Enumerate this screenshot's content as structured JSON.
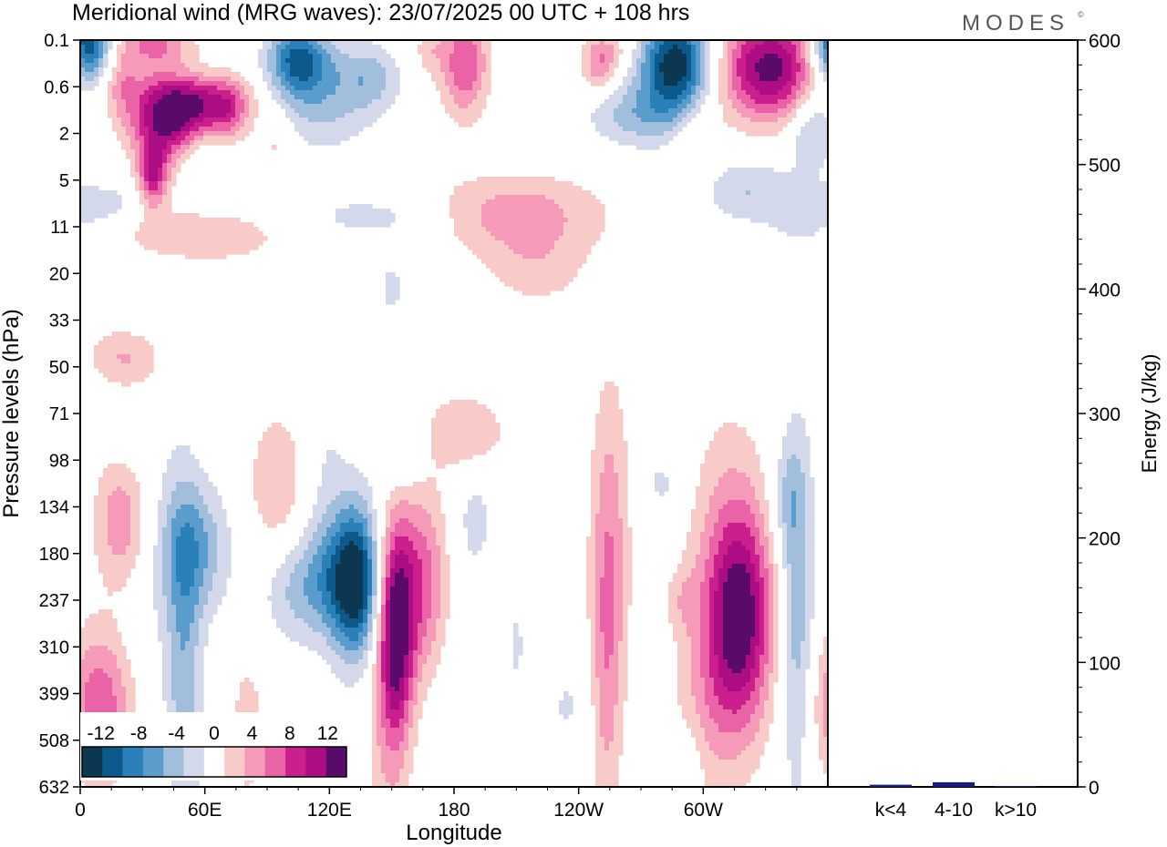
{
  "header": {
    "title": "Meridional wind (MRG waves):  23/07/2025  00 UTC  + 108 hrs",
    "brand": "MODES",
    "brand_mark": "©"
  },
  "colors": {
    "neg": [
      "#0b3850",
      "#0c5a8c",
      "#2a80b8",
      "#5a9ccb",
      "#a2bedd",
      "#d3d9ea"
    ],
    "neutral": "#ffffff",
    "pos": [
      "#f8cbc8",
      "#f59ab9",
      "#ea63a6",
      "#cc1f8e",
      "#ad0d83",
      "#5a0a6a"
    ],
    "bar": "#1a1a80"
  },
  "chart_data": [
    {
      "type": "heatmap",
      "title": "Meridional wind (MRG waves):  23/07/2025  00 UTC  + 108 hrs",
      "xlabel": "Longitude",
      "ylabel": "Pressure levels (hPa)",
      "x_ticks": [
        "0",
        "60E",
        "120E",
        "180",
        "120W",
        "60W"
      ],
      "x_tick_values": [
        0,
        60,
        120,
        180,
        240,
        300
      ],
      "xlim": [
        0,
        360
      ],
      "y_levels": [
        "0.1",
        "0.6",
        "2",
        "5",
        "11",
        "20",
        "33",
        "50",
        "71",
        "98",
        "134",
        "180",
        "237",
        "310",
        "399",
        "508",
        "632"
      ],
      "colorbar": {
        "labels": [
          "-12",
          "-8",
          "-4",
          "0",
          "4",
          "8",
          "12"
        ],
        "levels": [
          -14,
          -12,
          -10,
          -8,
          -6,
          -4,
          -2,
          2,
          4,
          6,
          8,
          10,
          12,
          14
        ]
      },
      "features": [
        {
          "lon": 3,
          "lev": 0.1,
          "rx": 8,
          "ry": 0.6,
          "amp": -13
        },
        {
          "lon": 35,
          "lev": 0.0,
          "rx": 12,
          "ry": 0.4,
          "amp": 6
        },
        {
          "lon": 20,
          "lev": 0.9,
          "rx": 6,
          "ry": 0.5,
          "amp": 4
        },
        {
          "lon": 42,
          "lev": 1.6,
          "rx": 13,
          "ry": 0.7,
          "amp": 13
        },
        {
          "lon": 65,
          "lev": 1.3,
          "rx": 14,
          "ry": 0.5,
          "amp": 8
        },
        {
          "lon": 35,
          "lev": 2.9,
          "rx": 5,
          "ry": 0.5,
          "amp": 9
        },
        {
          "lon": 58,
          "lev": 2.5,
          "rx": 8,
          "ry": 0.5,
          "amp": -3
        },
        {
          "lon": 55,
          "lev": 0.7,
          "rx": 14,
          "ry": 0.3,
          "amp": -2.5
        },
        {
          "lon": 105,
          "lev": 0.4,
          "rx": 10,
          "ry": 0.5,
          "amp": -9
        },
        {
          "lon": 115,
          "lev": 1.2,
          "rx": 18,
          "ry": 0.8,
          "amp": -5
        },
        {
          "lon": 140,
          "lev": 0.8,
          "rx": 10,
          "ry": 0.5,
          "amp": -4
        },
        {
          "lon": 95,
          "lev": 2.2,
          "rx": 6,
          "ry": 0.5,
          "amp": 3
        },
        {
          "lon": 72,
          "lev": 1.6,
          "rx": 6,
          "ry": 0.4,
          "amp": 3
        },
        {
          "lon": 185,
          "lev": 0.5,
          "rx": 8,
          "ry": 0.8,
          "amp": 8
        },
        {
          "lon": 168,
          "lev": 0.2,
          "rx": 5,
          "ry": 0.4,
          "amp": 3
        },
        {
          "lon": 250,
          "lev": 0.6,
          "rx": 6,
          "ry": 0.4,
          "amp": 5
        },
        {
          "lon": 255,
          "lev": 0.2,
          "rx": 8,
          "ry": 0.3,
          "amp": 3
        },
        {
          "lon": 287,
          "lev": 0.5,
          "rx": 12,
          "ry": 0.7,
          "amp": -14
        },
        {
          "lon": 270,
          "lev": 1.6,
          "rx": 18,
          "ry": 0.5,
          "amp": -5
        },
        {
          "lon": 332,
          "lev": 0.6,
          "rx": 17,
          "ry": 0.8,
          "amp": 13
        },
        {
          "lon": 298,
          "lev": 2.2,
          "rx": 8,
          "ry": 0.7,
          "amp": 3
        },
        {
          "lon": 352,
          "lev": 1.9,
          "rx": 8,
          "ry": 0.6,
          "amp": -5
        },
        {
          "lon": 320,
          "lev": 3.2,
          "rx": 18,
          "ry": 0.5,
          "amp": -4
        },
        {
          "lon": 350,
          "lev": 4.0,
          "rx": 15,
          "ry": 0.5,
          "amp": -2.5
        },
        {
          "lon": 210,
          "lev": 3.7,
          "rx": 30,
          "ry": 0.6,
          "amp": 5
        },
        {
          "lon": 220,
          "lev": 4.9,
          "rx": 18,
          "ry": 0.6,
          "amp": 3
        },
        {
          "lon": 55,
          "lev": 4.2,
          "rx": 35,
          "ry": 0.45,
          "amp": 3.5
        },
        {
          "lon": 10,
          "lev": 3.5,
          "rx": 14,
          "ry": 0.3,
          "amp": -3
        },
        {
          "lon": 140,
          "lev": 3.8,
          "rx": 25,
          "ry": 0.35,
          "amp": -3
        },
        {
          "lon": 150,
          "lev": 5.3,
          "rx": 5,
          "ry": 0.6,
          "amp": -2.5
        },
        {
          "lon": 20,
          "lev": 6.7,
          "rx": 14,
          "ry": 0.5,
          "amp": 3
        },
        {
          "lon": 20,
          "lev": 10.3,
          "rx": 10,
          "ry": 1.1,
          "amp": 7
        },
        {
          "lon": 10,
          "lev": 14.2,
          "rx": 12,
          "ry": 1.2,
          "amp": 8
        },
        {
          "lon": 55,
          "lev": 10.9,
          "rx": 12,
          "ry": 1.0,
          "amp": -6
        },
        {
          "lon": 50,
          "lev": 13.5,
          "rx": 6,
          "ry": 2.6,
          "amp": -5
        },
        {
          "lon": 28,
          "lev": 10.5,
          "rx": 16,
          "ry": 3.5,
          "amp": -2
        },
        {
          "lon": 95,
          "lev": 9.5,
          "rx": 10,
          "ry": 1.1,
          "amp": 4
        },
        {
          "lon": 80,
          "lev": 14.8,
          "rx": 6,
          "ry": 1.0,
          "amp": 4
        },
        {
          "lon": 100,
          "lev": 11.8,
          "rx": 10,
          "ry": 0.8,
          "amp": -3
        },
        {
          "lon": 120,
          "lev": 11.6,
          "rx": 12,
          "ry": 0.9,
          "amp": -6
        },
        {
          "lon": 133,
          "lev": 11.6,
          "rx": 8,
          "ry": 1.2,
          "amp": -12
        },
        {
          "lon": 118,
          "lev": 9.0,
          "rx": 8,
          "ry": 2.0,
          "amp": -2
        },
        {
          "lon": 152,
          "lev": 12.6,
          "rx": 6,
          "ry": 1.6,
          "amp": 13
        },
        {
          "lon": 165,
          "lev": 11.6,
          "rx": 8,
          "ry": 1.4,
          "amp": 7
        },
        {
          "lon": 148,
          "lev": 15.0,
          "rx": 8,
          "ry": 2.5,
          "amp": 3
        },
        {
          "lon": 155,
          "lev": 8.7,
          "rx": 8,
          "ry": 0.6,
          "amp": -3
        },
        {
          "lon": 185,
          "lev": 8.4,
          "rx": 14,
          "ry": 0.6,
          "amp": 4
        },
        {
          "lon": 190,
          "lev": 10.3,
          "rx": 6,
          "ry": 0.8,
          "amp": -3
        },
        {
          "lon": 210,
          "lev": 12.8,
          "rx": 4,
          "ry": 0.8,
          "amp": -2
        },
        {
          "lon": 255,
          "lev": 11.0,
          "rx": 7,
          "ry": 2.7,
          "amp": 5
        },
        {
          "lon": 253,
          "lev": 14.0,
          "rx": 5,
          "ry": 2.5,
          "amp": 3
        },
        {
          "lon": 280,
          "lev": 9.5,
          "rx": 7,
          "ry": 0.5,
          "amp": -2.5
        },
        {
          "lon": 290,
          "lev": 12.0,
          "rx": 6,
          "ry": 0.5,
          "amp": 2.5
        },
        {
          "lon": 318,
          "lev": 12.4,
          "rx": 11,
          "ry": 1.6,
          "amp": 11
        },
        {
          "lon": 312,
          "lev": 11.5,
          "rx": 14,
          "ry": 2.5,
          "amp": 4
        },
        {
          "lon": 300,
          "lev": 14.5,
          "rx": 12,
          "ry": 1.5,
          "amp": 2.5
        },
        {
          "lon": 345,
          "lev": 12.2,
          "rx": 6,
          "ry": 2.8,
          "amp": -6
        },
        {
          "lon": 340,
          "lev": 9.8,
          "rx": 6,
          "ry": 0.8,
          "amp": -3
        },
        {
          "lon": 200,
          "lev": 15.2,
          "rx": 16,
          "ry": 1.2,
          "amp": -2
        },
        {
          "lon": 235,
          "lev": 14.2,
          "rx": 8,
          "ry": 0.9,
          "amp": -2
        },
        {
          "lon": 25,
          "lev": 7.0,
          "rx": 12,
          "ry": 0.5,
          "amp": 2.5
        },
        {
          "lon": 293,
          "lev": 15.4,
          "rx": 6,
          "ry": 0.6,
          "amp": -2
        },
        {
          "lon": 70,
          "lev": 15.0,
          "rx": 4,
          "ry": 1.0,
          "amp": -2
        }
      ]
    },
    {
      "type": "bar",
      "ylabel": "Energy (J/kg)",
      "categories": [
        "k<4",
        "4-10",
        "k>10"
      ],
      "values": [
        1,
        3,
        0
      ],
      "ylim": [
        0,
        600
      ],
      "y_ticks": [
        "0",
        "100",
        "200",
        "300",
        "400",
        "500",
        "600"
      ]
    }
  ]
}
